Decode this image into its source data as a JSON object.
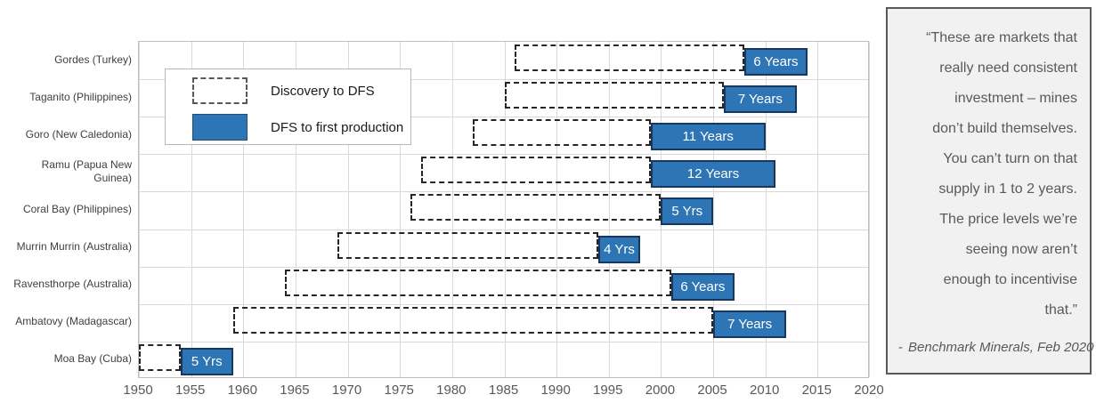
{
  "chart_data": {
    "type": "bar",
    "subtype": "gantt-timeline",
    "title": "",
    "x_axis": {
      "min": 1950,
      "max": 2020,
      "tick_step": 5,
      "ticks": [
        "1950",
        "1955",
        "1960",
        "1965",
        "1970",
        "1975",
        "1980",
        "1985",
        "1990",
        "1995",
        "2000",
        "2005",
        "2010",
        "2015",
        "2020"
      ]
    },
    "legend": [
      {
        "label": "Discovery to DFS",
        "style": "dashed-outline"
      },
      {
        "label": "DFS to first production",
        "style": "solid-blue"
      }
    ],
    "rows": [
      {
        "label": "Gordes (Turkey)",
        "discovery_start": 1986,
        "dfs_year": 2008,
        "production_year": 2014,
        "duration_label": "6 Years"
      },
      {
        "label": "Taganito (Philippines)",
        "discovery_start": 1985,
        "dfs_year": 2006,
        "production_year": 2013,
        "duration_label": "7 Years"
      },
      {
        "label": "Goro (New Caledonia)",
        "discovery_start": 1982,
        "dfs_year": 1999,
        "production_year": 2010,
        "duration_label": "11 Years"
      },
      {
        "label": "Ramu (Papua New\nGuinea)",
        "discovery_start": 1977,
        "dfs_year": 1999,
        "production_year": 2011,
        "duration_label": "12 Years"
      },
      {
        "label": "Coral Bay (Philippines)",
        "discovery_start": 1976,
        "dfs_year": 2000,
        "production_year": 2005,
        "duration_label": "5 Yrs"
      },
      {
        "label": "Murrin Murrin (Australia)",
        "discovery_start": 1969,
        "dfs_year": 1994,
        "production_year": 1998,
        "duration_label": "4 Yrs"
      },
      {
        "label": "Ravensthorpe (Australia)",
        "discovery_start": 1964,
        "dfs_year": 2001,
        "production_year": 2007,
        "duration_label": "6 Years"
      },
      {
        "label": "Ambatovy (Madagascar)",
        "discovery_start": 1959,
        "dfs_year": 2005,
        "production_year": 2012,
        "duration_label": "7 Years"
      },
      {
        "label": "Moa Bay (Cuba)",
        "discovery_start": 1950,
        "dfs_year": 1954,
        "production_year": 1959,
        "duration_label": "5 Yrs"
      }
    ],
    "colors": {
      "bar_fill": "#2E75B6",
      "bar_border": "#17375E",
      "dashed_border": "#262626",
      "gridline": "#D9D9D9",
      "plot_border": "#BFBFBF",
      "axis_text": "#595959"
    }
  },
  "quote": {
    "lines": [
      "“These are markets that",
      "really need consistent",
      "investment – mines",
      "don’t build themselves.",
      "You can’t turn on that",
      "supply in 1 to 2 years.",
      "The price levels we’re",
      "seeing now aren’t",
      "enough to incentivise",
      "that.”"
    ],
    "attribution_prefix": "-",
    "attribution": "Benchmark Minerals, Feb 2020"
  }
}
